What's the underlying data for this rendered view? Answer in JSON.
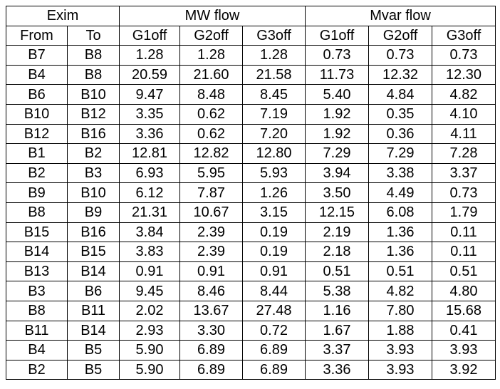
{
  "table": {
    "groups": [
      {
        "label": "Exim",
        "columns": [
          "From",
          "To"
        ]
      },
      {
        "label": "MW flow",
        "columns": [
          "G1off",
          "G2off",
          "G3off"
        ]
      },
      {
        "label": "Mvar flow",
        "columns": [
          "G1off",
          "G2off",
          "G3off"
        ]
      }
    ],
    "rows": [
      [
        "B7",
        "B8",
        "1.28",
        "1.28",
        "1.28",
        "0.73",
        "0.73",
        "0.73"
      ],
      [
        "B4",
        "B8",
        "20.59",
        "21.60",
        "21.58",
        "11.73",
        "12.32",
        "12.30"
      ],
      [
        "B6",
        "B10",
        "9.47",
        "8.48",
        "8.45",
        "5.40",
        "4.84",
        "4.82"
      ],
      [
        "B10",
        "B12",
        "3.35",
        "0.62",
        "7.19",
        "1.92",
        "0.35",
        "4.10"
      ],
      [
        "B12",
        "B16",
        "3.36",
        "0.62",
        "7.20",
        "1.92",
        "0.36",
        "4.11"
      ],
      [
        "B1",
        "B2",
        "12.81",
        "12.82",
        "12.80",
        "7.29",
        "7.29",
        "7.28"
      ],
      [
        "B2",
        "B3",
        "6.93",
        "5.95",
        "5.93",
        "3.94",
        "3.38",
        "3.37"
      ],
      [
        "B9",
        "B10",
        "6.12",
        "7.87",
        "1.26",
        "3.50",
        "4.49",
        "0.73"
      ],
      [
        "B8",
        "B9",
        "21.31",
        "10.67",
        "3.15",
        "12.15",
        "6.08",
        "1.79"
      ],
      [
        "B15",
        "B16",
        "3.84",
        "2.39",
        "0.19",
        "2.19",
        "1.36",
        "0.11"
      ],
      [
        "B14",
        "B15",
        "3.83",
        "2.39",
        "0.19",
        "2.18",
        "1.36",
        "0.11"
      ],
      [
        "B13",
        "B14",
        "0.91",
        "0.91",
        "0.91",
        "0.51",
        "0.51",
        "0.51"
      ],
      [
        "B3",
        "B6",
        "9.45",
        "8.46",
        "8.44",
        "5.38",
        "4.82",
        "4.80"
      ],
      [
        "B8",
        "B11",
        "2.02",
        "13.67",
        "27.48",
        "1.16",
        "7.80",
        "15.68"
      ],
      [
        "B11",
        "B14",
        "2.93",
        "3.30",
        "0.72",
        "1.67",
        "1.88",
        "0.41"
      ],
      [
        "B4",
        "B5",
        "5.90",
        "6.89",
        "6.89",
        "3.37",
        "3.93",
        "3.93"
      ],
      [
        "B2",
        "B5",
        "5.90",
        "6.89",
        "6.89",
        "3.36",
        "3.93",
        "3.92"
      ]
    ]
  }
}
